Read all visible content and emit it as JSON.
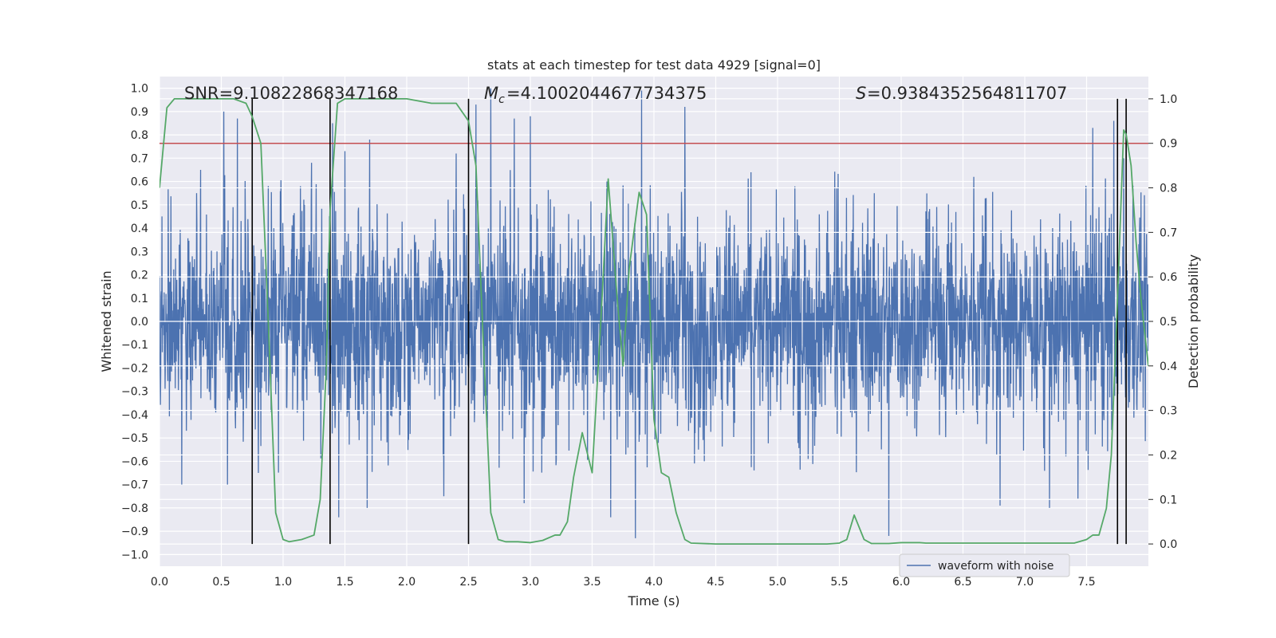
{
  "chart_data": {
    "type": "line",
    "title": "stats at each timestep for test data 4929 [signal=0]",
    "xlabel": "Time (s)",
    "ylabel": "Whitened strain",
    "y2label": "Detection probability",
    "xlim": [
      0.0,
      8.0
    ],
    "ylim": [
      -1.05,
      1.05
    ],
    "y2lim": [
      -0.05,
      1.05
    ],
    "xticks": [
      "0.0",
      "0.5",
      "1.0",
      "1.5",
      "2.0",
      "2.5",
      "3.0",
      "3.5",
      "4.0",
      "4.5",
      "5.0",
      "5.5",
      "6.0",
      "6.5",
      "7.0",
      "7.5"
    ],
    "yticks": [
      "−1.0",
      "−0.9",
      "−0.8",
      "−0.7",
      "−0.6",
      "−0.5",
      "−0.4",
      "−0.3",
      "−0.2",
      "−0.1",
      "0.0",
      "0.1",
      "0.2",
      "0.3",
      "0.4",
      "0.5",
      "0.6",
      "0.7",
      "0.8",
      "0.9",
      "1.0"
    ],
    "y2ticks": [
      "0.0",
      "0.1",
      "0.2",
      "0.3",
      "0.4",
      "0.5",
      "0.6",
      "0.7",
      "0.8",
      "0.9",
      "1.0"
    ],
    "annotations": {
      "snr": "SNR=9.10822868347168",
      "mc": "=4.1002044677734375",
      "s": "=0.9384352564811707"
    },
    "legend": {
      "label": "waveform with noise",
      "placement": "lower center-right"
    },
    "threshold": {
      "value": 0.9,
      "axis": "y2",
      "color": "#c44e52"
    },
    "vertical_lines": [
      0.75,
      1.38,
      2.5,
      7.75,
      7.82
    ],
    "waveform": {
      "name": "waveform with noise",
      "color": "#4c72b0",
      "typical_range": [
        -0.4,
        0.4
      ],
      "spikes": [
        [
          0.02,
          0.45
        ],
        [
          0.3,
          0.55
        ],
        [
          0.52,
          0.9
        ],
        [
          0.63,
          0.87
        ],
        [
          0.88,
          0.58
        ],
        [
          1.23,
          0.68
        ],
        [
          1.4,
          0.85
        ],
        [
          1.5,
          0.73
        ],
        [
          1.7,
          0.78
        ],
        [
          2.4,
          0.72
        ],
        [
          2.56,
          0.93
        ],
        [
          2.68,
          1.0
        ],
        [
          2.87,
          0.87
        ],
        [
          3.0,
          0.88
        ],
        [
          3.62,
          0.6
        ],
        [
          3.9,
          0.99
        ],
        [
          4.25,
          0.92
        ],
        [
          7.55,
          0.83
        ],
        [
          7.72,
          0.86
        ],
        [
          7.8,
          0.7
        ],
        [
          0.18,
          -0.7
        ],
        [
          0.55,
          -0.7
        ],
        [
          0.8,
          -0.65
        ],
        [
          1.45,
          -0.84
        ],
        [
          1.68,
          -0.8
        ],
        [
          2.3,
          -0.75
        ],
        [
          2.95,
          -0.78
        ],
        [
          3.65,
          -0.84
        ],
        [
          3.85,
          -0.93
        ],
        [
          5.9,
          -0.92
        ],
        [
          6.8,
          -0.79
        ],
        [
          7.2,
          -0.8
        ],
        [
          7.43,
          -0.76
        ]
      ]
    },
    "series": [
      {
        "name": "",
        "axis": "y2",
        "color": "#55a868",
        "x": [
          0.0,
          0.06,
          0.12,
          0.2,
          0.3,
          0.4,
          0.5,
          0.6,
          0.7,
          0.75,
          0.82,
          0.88,
          0.94,
          1.0,
          1.05,
          1.15,
          1.25,
          1.3,
          1.35,
          1.38,
          1.44,
          1.5,
          1.6,
          1.8,
          2.0,
          2.2,
          2.4,
          2.5,
          2.56,
          2.62,
          2.68,
          2.74,
          2.8,
          2.9,
          3.0,
          3.1,
          3.2,
          3.24,
          3.3,
          3.35,
          3.42,
          3.5,
          3.57,
          3.63,
          3.7,
          3.75,
          3.8,
          3.88,
          3.94,
          4.0,
          4.06,
          4.12,
          4.18,
          4.25,
          4.3,
          4.5,
          4.8,
          5.1,
          5.4,
          5.5,
          5.56,
          5.62,
          5.7,
          5.76,
          5.8,
          5.9,
          6.0,
          6.1,
          6.15,
          6.2,
          6.3,
          6.5,
          6.8,
          7.0,
          7.2,
          7.4,
          7.5,
          7.55,
          7.6,
          7.66,
          7.7,
          7.75,
          7.8,
          7.82,
          7.86,
          7.9,
          7.94,
          8.0
        ],
        "y": [
          0.8,
          0.98,
          1.0,
          1.0,
          1.0,
          1.0,
          1.0,
          1.0,
          0.99,
          0.96,
          0.9,
          0.5,
          0.07,
          0.01,
          0.005,
          0.01,
          0.02,
          0.1,
          0.4,
          0.75,
          0.99,
          1.0,
          1.0,
          1.0,
          1.0,
          0.99,
          0.99,
          0.95,
          0.85,
          0.45,
          0.07,
          0.01,
          0.005,
          0.005,
          0.003,
          0.008,
          0.02,
          0.02,
          0.05,
          0.15,
          0.25,
          0.16,
          0.5,
          0.82,
          0.56,
          0.4,
          0.62,
          0.79,
          0.74,
          0.28,
          0.16,
          0.15,
          0.07,
          0.01,
          0.002,
          0.0,
          0.0,
          0.0,
          0.0,
          0.002,
          0.01,
          0.065,
          0.01,
          0.001,
          0.001,
          0.001,
          0.003,
          0.003,
          0.003,
          0.002,
          0.002,
          0.002,
          0.002,
          0.002,
          0.002,
          0.002,
          0.01,
          0.02,
          0.02,
          0.08,
          0.2,
          0.55,
          0.93,
          0.92,
          0.85,
          0.68,
          0.55,
          0.4
        ]
      }
    ]
  }
}
